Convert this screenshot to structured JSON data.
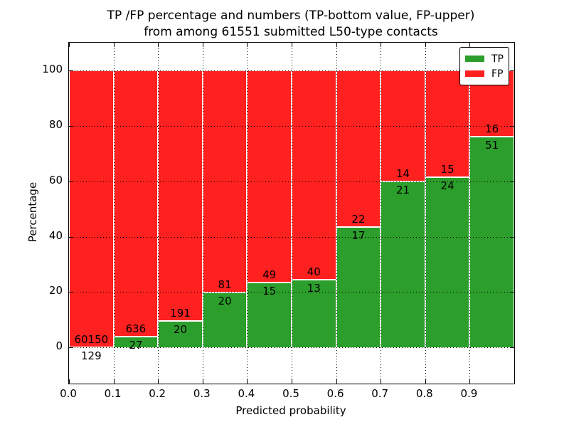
{
  "figure": {
    "title_line1": "TP /FP percentage and numbers (TP-bottom value, FP-upper)",
    "title_line2": "from among 61551 submitted L50-type contacts",
    "xlabel": "Predicted probability",
    "ylabel": "Percentage"
  },
  "legend": {
    "items": [
      {
        "label": "TP",
        "color": "#2b9e2b"
      },
      {
        "label": "FP",
        "color": "#ff2020"
      }
    ]
  },
  "chart_data": {
    "type": "bar",
    "subtype": "stacked-100-percent-histogram",
    "title": "TP /FP percentage and numbers (TP-bottom value, FP-upper) from among 61551 submitted L50-type contacts",
    "xlabel": "Predicted probability",
    "ylabel": "Percentage",
    "total_contacts": 61551,
    "bin_width": 0.1,
    "bin_starts": [
      0.0,
      0.1,
      0.2,
      0.3,
      0.4,
      0.5,
      0.6,
      0.7,
      0.8,
      0.9
    ],
    "xtick_labels": [
      "0.0",
      "0.1",
      "0.2",
      "0.3",
      "0.4",
      "0.5",
      "0.6",
      "0.7",
      "0.8",
      "0.9"
    ],
    "yticks": [
      0,
      20,
      40,
      60,
      80,
      100
    ],
    "xlim": [
      0,
      1
    ],
    "ylim_data": [
      0,
      100
    ],
    "ylim_view": [
      -13,
      110
    ],
    "grid": "dotted",
    "legend_position": "upper-right",
    "series": [
      {
        "name": "TP",
        "color": "#2b9e2b",
        "counts": [
          129,
          27,
          20,
          20,
          15,
          13,
          17,
          21,
          24,
          51
        ]
      },
      {
        "name": "FP",
        "color": "#ff2020",
        "counts": [
          60150,
          636,
          191,
          81,
          49,
          40,
          22,
          14,
          15,
          16
        ]
      }
    ],
    "tp_percent_of_bin": [
      0.21,
      4.07,
      9.48,
      19.8,
      23.44,
      24.53,
      43.59,
      60.0,
      61.54,
      76.12
    ]
  }
}
